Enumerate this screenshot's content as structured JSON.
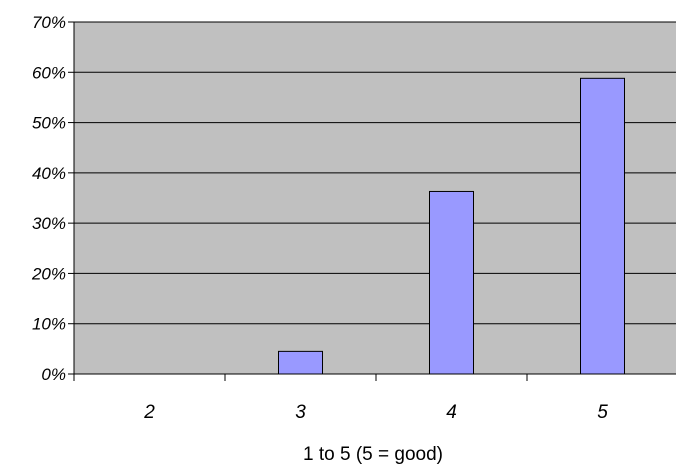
{
  "chart_data": {
    "type": "bar",
    "title": "",
    "xlabel": "1 to 5 (5 = good)",
    "ylabel": "",
    "categories": [
      "2",
      "3",
      "4",
      "5"
    ],
    "values": [
      0,
      4.5,
      36.3,
      58.8
    ],
    "ylim": [
      0,
      70
    ],
    "yticks": [
      0,
      10,
      20,
      30,
      40,
      50,
      60,
      70
    ],
    "ytick_labels": [
      "0%",
      "10%",
      "20%",
      "30%",
      "40%",
      "50%",
      "60%",
      "70%"
    ],
    "grid": true,
    "legend": "none",
    "colors": {
      "plot_bg": "#c0c0c0",
      "bar_fill": "#9999ff",
      "bar_stroke": "#000000",
      "gridline": "#000000"
    }
  }
}
